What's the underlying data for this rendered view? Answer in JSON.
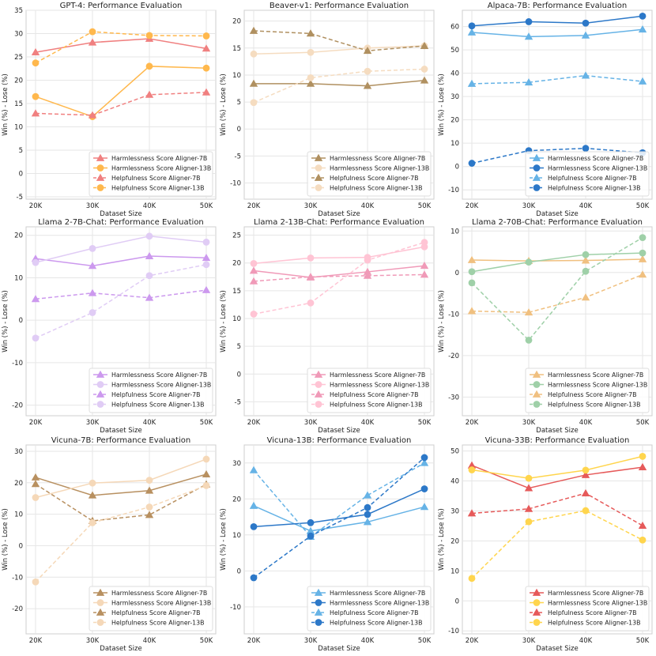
{
  "figure": {
    "x_label": "Dataset Size",
    "y_label": "Win (%) - Lose (%)"
  },
  "chart_data": [
    {
      "type": "line",
      "title": "GPT-4: Performance Evaluation",
      "xlabel": "Dataset Size",
      "ylabel": "Win (%) - Lose (%)",
      "categories": [
        "20K",
        "30K",
        "40K",
        "50K"
      ],
      "ylim": [
        -5.5,
        35
      ],
      "yticks": [
        -5,
        0,
        5,
        10,
        15,
        20,
        25,
        30,
        35
      ],
      "colors": {
        "c7": "#f08080",
        "c13": "#ffb84d"
      },
      "legend_position": "lower right",
      "series": [
        {
          "name": "Harmlessness Score Aligner-7B",
          "values": [
            26.0,
            28.1,
            28.9,
            26.8
          ]
        },
        {
          "name": "Harmlessness Score Aligner-13B",
          "values": [
            16.5,
            12.2,
            23.0,
            22.6
          ]
        },
        {
          "name": "Helpfulness Score Aligner-7B",
          "values": [
            12.9,
            12.5,
            16.9,
            17.4
          ]
        },
        {
          "name": "Helpfulness Score Aligner-13B",
          "values": [
            23.7,
            30.4,
            29.6,
            29.5
          ]
        }
      ]
    },
    {
      "type": "line",
      "title": "Beaver-v1: Performance Evaluation",
      "xlabel": "Dataset Size",
      "ylabel": "Win (%) - Lose (%)",
      "categories": [
        "20K",
        "30K",
        "40K",
        "50K"
      ],
      "ylim": [
        -13,
        22
      ],
      "yticks": [
        -10,
        -5,
        0,
        5,
        10,
        15,
        20
      ],
      "colors": {
        "c7": "#b09060",
        "c13": "#f5dcc0"
      },
      "legend_position": "lower right",
      "series": [
        {
          "name": "Harmlessness Score Aligner-7B",
          "values": [
            8.4,
            8.4,
            8.0,
            9.0
          ]
        },
        {
          "name": "Harmlessness Score Aligner-13B",
          "values": [
            13.9,
            14.2,
            15.0,
            15.4
          ]
        },
        {
          "name": "Helpfulness Score Aligner-7B",
          "values": [
            18.2,
            17.7,
            14.5,
            15.4
          ]
        },
        {
          "name": "Helpfulness Score Aligner-13B",
          "values": [
            4.9,
            9.5,
            10.7,
            11.1
          ]
        }
      ]
    },
    {
      "type": "line",
      "title": "Alpaca-7B: Performance Evaluation",
      "xlabel": "Dataset Size",
      "ylabel": "Win (%) - Lose (%)",
      "categories": [
        "20K",
        "30K",
        "40K",
        "50K"
      ],
      "ylim": [
        -14,
        67
      ],
      "yticks": [
        -10,
        0,
        10,
        20,
        30,
        40,
        50,
        60
      ],
      "colors": {
        "c7": "#66b3e6",
        "c13": "#2c78c8"
      },
      "legend_position": "lower right",
      "series": [
        {
          "name": "Harmlessness Score Aligner-7B",
          "values": [
            57.5,
            55.7,
            56.2,
            58.8
          ]
        },
        {
          "name": "Harmlessness Score Aligner-13B",
          "values": [
            60.3,
            62.1,
            61.5,
            64.5
          ]
        },
        {
          "name": "Helpfulness Score Aligner-7B",
          "values": [
            35.5,
            36.1,
            39.0,
            36.5
          ]
        },
        {
          "name": "Helpfulness Score Aligner-13B",
          "values": [
            1.4,
            6.8,
            7.8,
            5.9
          ]
        }
      ]
    },
    {
      "type": "line",
      "title": "Llama 2-7B-Chat: Performance Evaluation",
      "xlabel": "Dataset Size",
      "ylabel": "Win (%) - Lose (%)",
      "categories": [
        "20K",
        "30K",
        "40K",
        "50K"
      ],
      "ylim": [
        -22.5,
        22
      ],
      "yticks": [
        -20,
        -10,
        0,
        10,
        20
      ],
      "colors": {
        "c7": "#cc99ee",
        "c13": "#e0ccf5"
      },
      "legend_position": "lower right",
      "series": [
        {
          "name": "Harmlessness Score Aligner-7B",
          "values": [
            14.5,
            12.8,
            15.1,
            14.7
          ]
        },
        {
          "name": "Harmlessness Score Aligner-13B",
          "values": [
            13.6,
            16.9,
            19.8,
            18.4
          ]
        },
        {
          "name": "Helpfulness Score Aligner-7B",
          "values": [
            5.0,
            6.4,
            5.3,
            7.1
          ]
        },
        {
          "name": "Helpfulness Score Aligner-13B",
          "values": [
            -4.2,
            1.8,
            10.5,
            13.1
          ]
        }
      ]
    },
    {
      "type": "line",
      "title": "Llama 2-13B-Chat: Performance Evaluation",
      "xlabel": "Dataset Size",
      "ylabel": "Win (%) - Lose (%)",
      "categories": [
        "20K",
        "30K",
        "40K",
        "50K"
      ],
      "ylim": [
        -7.5,
        26.5
      ],
      "yticks": [
        -5,
        0,
        5,
        10,
        15,
        20,
        25
      ],
      "colors": {
        "c7": "#f09ab8",
        "c13": "#ffc4d4"
      },
      "legend_position": "lower right",
      "series": [
        {
          "name": "Harmlessness Score Aligner-7B",
          "values": [
            18.6,
            17.4,
            18.4,
            19.5
          ]
        },
        {
          "name": "Harmlessness Score Aligner-13B",
          "values": [
            19.9,
            20.9,
            21.0,
            22.9
          ]
        },
        {
          "name": "Helpfulness Score Aligner-7B",
          "values": [
            16.7,
            17.5,
            17.7,
            17.9
          ]
        },
        {
          "name": "Helpfulness Score Aligner-13B",
          "values": [
            10.8,
            12.8,
            20.5,
            23.7
          ]
        }
      ]
    },
    {
      "type": "line",
      "title": "Llama 2-70B-Chat: Performance Evaluation",
      "xlabel": "Dataset Size",
      "ylabel": "Win (%) - Lose (%)",
      "categories": [
        "20K",
        "30K",
        "40K",
        "50K"
      ],
      "ylim": [
        -34.5,
        11
      ],
      "yticks": [
        -30,
        -20,
        -10,
        0,
        10
      ],
      "colors": {
        "c7": "#f0c080",
        "c13": "#9fd0a8"
      },
      "legend_position": "lower right",
      "series": [
        {
          "name": "Harmlessness Score Aligner-7B",
          "values": [
            3.0,
            2.8,
            2.9,
            3.2
          ]
        },
        {
          "name": "Harmlessness Score Aligner-13B",
          "values": [
            0.2,
            2.5,
            4.3,
            4.7
          ]
        },
        {
          "name": "Helpfulness Score Aligner-7B",
          "values": [
            -9.3,
            -9.6,
            -6.0,
            -0.5
          ]
        },
        {
          "name": "Helpfulness Score Aligner-13B",
          "values": [
            -2.5,
            -16.3,
            0.3,
            8.4
          ]
        }
      ]
    },
    {
      "type": "line",
      "title": "Vicuna-7B: Performance Evaluation",
      "xlabel": "Dataset Size",
      "ylabel": "Win (%) - Lose (%)",
      "categories": [
        "20K",
        "30K",
        "40K",
        "50K"
      ],
      "ylim": [
        -28,
        32
      ],
      "yticks": [
        -20,
        -10,
        0,
        10,
        20,
        30
      ],
      "colors": {
        "c7": "#b89060",
        "c13": "#f5d8b8"
      },
      "legend_position": "lower right",
      "series": [
        {
          "name": "Harmlessness Score Aligner-7B",
          "values": [
            21.7,
            16.0,
            17.5,
            22.7
          ]
        },
        {
          "name": "Harmlessness Score Aligner-13B",
          "values": [
            15.3,
            19.9,
            20.8,
            27.5
          ]
        },
        {
          "name": "Helpfulness Score Aligner-7B",
          "values": [
            19.6,
            7.9,
            9.8,
            19.5
          ]
        },
        {
          "name": "Helpfulness Score Aligner-13B",
          "values": [
            -11.5,
            7.3,
            12.3,
            19.1
          ]
        }
      ]
    },
    {
      "type": "line",
      "title": "Vicuna-13B: Performance Evaluation",
      "xlabel": "Dataset Size",
      "ylabel": "Win (%) - Lose (%)",
      "categories": [
        "20K",
        "30K",
        "40K",
        "50K"
      ],
      "ylim": [
        -17.5,
        35
      ],
      "yticks": [
        -10,
        0,
        10,
        20,
        30
      ],
      "colors": {
        "c7": "#66b3e6",
        "c13": "#2c78c8"
      },
      "legend_position": "lower right",
      "series": [
        {
          "name": "Harmlessness Score Aligner-7B",
          "values": [
            18.1,
            11.1,
            13.6,
            17.8
          ]
        },
        {
          "name": "Harmlessness Score Aligner-13B",
          "values": [
            12.3,
            13.4,
            15.7,
            22.8
          ]
        },
        {
          "name": "Helpfulness Score Aligner-7B",
          "values": [
            28.0,
            9.5,
            21.0,
            30.0
          ]
        },
        {
          "name": "Helpfulness Score Aligner-13B",
          "values": [
            -1.9,
            9.7,
            17.6,
            31.5
          ]
        }
      ]
    },
    {
      "type": "line",
      "title": "Vicuna-33B: Performance Evaluation",
      "xlabel": "Dataset Size",
      "ylabel": "Win (%) - Lose (%)",
      "categories": [
        "20K",
        "30K",
        "40K",
        "50K"
      ],
      "ylim": [
        -11,
        52
      ],
      "yticks": [
        -10,
        0,
        10,
        20,
        30,
        40,
        50
      ],
      "colors": {
        "c7": "#e65a5a",
        "c13": "#ffd54d"
      },
      "legend_position": "lower right",
      "series": [
        {
          "name": "Harmlessness Score Aligner-7B",
          "values": [
            45.2,
            37.6,
            42.0,
            44.6
          ]
        },
        {
          "name": "Harmlessness Score Aligner-13B",
          "values": [
            43.7,
            40.9,
            43.6,
            48.2
          ]
        },
        {
          "name": "Helpfulness Score Aligner-7B",
          "values": [
            29.2,
            30.7,
            35.9,
            25.1
          ]
        },
        {
          "name": "Helpfulness Score Aligner-13B",
          "values": [
            7.5,
            26.4,
            30.1,
            20.3
          ]
        }
      ]
    }
  ]
}
